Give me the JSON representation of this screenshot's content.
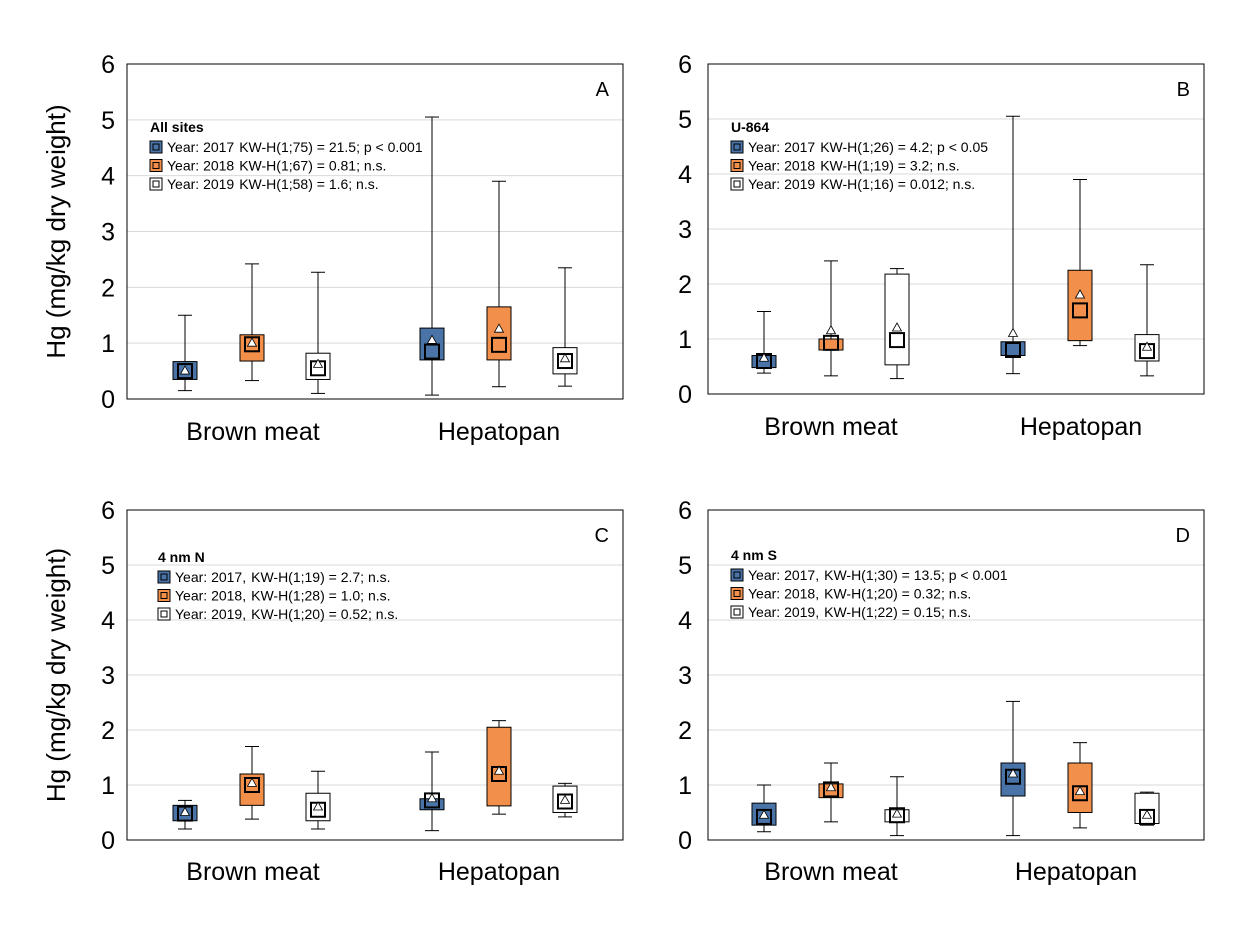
{
  "y_axis_label": "Hg (mg/kg dry weight)",
  "colors": {
    "2017": "#4a74a8",
    "2018": "#f28f4a",
    "2019": "#ffffff",
    "grid": "#d9d9d9",
    "frame": "#000000"
  },
  "chart_data": [
    {
      "type": "box",
      "panel": "A",
      "site": "All sites",
      "ylim": [
        0,
        6
      ],
      "yticks": [
        "0",
        "1",
        "2",
        "3",
        "4",
        "5",
        "6"
      ],
      "categories": [
        "Brown meat",
        "Hepatopan"
      ],
      "legend": [
        {
          "year": "Year: 2017",
          "stat": "KW-H(1;75) = 21.5; p < 0.001"
        },
        {
          "year": "Year: 2018",
          "stat": "KW-H(1;67) = 0.81; n.s."
        },
        {
          "year": "Year: 2019",
          "stat": "KW-H(1;58) = 1.6; n.s."
        }
      ],
      "series": [
        {
          "year": "2017",
          "boxes": [
            {
              "min": 0.15,
              "q1": 0.35,
              "median": 0.5,
              "q3": 0.67,
              "max": 1.5,
              "mean": 0.5
            },
            {
              "min": 0.07,
              "q1": 0.7,
              "median": 0.85,
              "q3": 1.27,
              "max": 5.05,
              "mean": 1.05
            }
          ]
        },
        {
          "year": "2018",
          "boxes": [
            {
              "min": 0.33,
              "q1": 0.68,
              "median": 0.98,
              "q3": 1.15,
              "max": 2.42,
              "mean": 1.0
            },
            {
              "min": 0.22,
              "q1": 0.7,
              "median": 0.97,
              "q3": 1.65,
              "max": 3.9,
              "mean": 1.25
            }
          ]
        },
        {
          "year": "2019",
          "boxes": [
            {
              "min": 0.1,
              "q1": 0.35,
              "median": 0.55,
              "q3": 0.82,
              "max": 2.27,
              "mean": 0.62
            },
            {
              "min": 0.23,
              "q1": 0.45,
              "median": 0.68,
              "q3": 0.92,
              "max": 2.35,
              "mean": 0.72
            }
          ]
        }
      ]
    },
    {
      "type": "box",
      "panel": "B",
      "site": "U-864",
      "ylim": [
        0,
        6
      ],
      "yticks": [
        "0",
        "1",
        "2",
        "3",
        "4",
        "5",
        "6"
      ],
      "categories": [
        "Brown meat",
        "Hepatopan"
      ],
      "legend": [
        {
          "year": "Year: 2017",
          "stat": "KW-H(1;26) = 4.2; p < 0.05"
        },
        {
          "year": "Year: 2018",
          "stat": "KW-H(1;19) = 3.2; n.s."
        },
        {
          "year": "Year: 2019",
          "stat": "KW-H(1;16) = 0.012; n.s."
        }
      ],
      "series": [
        {
          "year": "2017",
          "boxes": [
            {
              "min": 0.38,
              "q1": 0.48,
              "median": 0.6,
              "q3": 0.7,
              "max": 1.5,
              "mean": 0.65
            },
            {
              "min": 0.37,
              "q1": 0.7,
              "median": 0.8,
              "q3": 0.95,
              "max": 5.05,
              "mean": 1.1
            }
          ]
        },
        {
          "year": "2018",
          "boxes": [
            {
              "min": 0.33,
              "q1": 0.8,
              "median": 0.93,
              "q3": 1.0,
              "max": 2.42,
              "mean": 1.15
            },
            {
              "min": 0.88,
              "q1": 0.97,
              "median": 1.52,
              "q3": 2.25,
              "max": 3.9,
              "mean": 1.8
            }
          ]
        },
        {
          "year": "2019",
          "boxes": [
            {
              "min": 0.28,
              "q1": 0.53,
              "median": 0.98,
              "q3": 2.18,
              "max": 2.28,
              "mean": 1.2
            },
            {
              "min": 0.33,
              "q1": 0.6,
              "median": 0.78,
              "q3": 1.08,
              "max": 2.35,
              "mean": 0.85
            }
          ]
        }
      ]
    },
    {
      "type": "box",
      "panel": "C",
      "site": "4 nm N",
      "ylim": [
        0,
        6
      ],
      "yticks": [
        "0",
        "1",
        "2",
        "3",
        "4",
        "5",
        "6"
      ],
      "categories": [
        "Brown meat",
        "Hepatopan"
      ],
      "legend": [
        {
          "year": "Year: 2017,",
          "stat": "KW-H(1;19) = 2.7; n.s."
        },
        {
          "year": "Year: 2018,",
          "stat": "KW-H(1;28) = 1.0; n.s."
        },
        {
          "year": "Year: 2019,",
          "stat": "KW-H(1;20) = 0.52; n.s."
        }
      ],
      "series": [
        {
          "year": "2017",
          "boxes": [
            {
              "min": 0.2,
              "q1": 0.35,
              "median": 0.48,
              "q3": 0.63,
              "max": 0.72,
              "mean": 0.5
            },
            {
              "min": 0.17,
              "q1": 0.55,
              "median": 0.72,
              "q3": 0.75,
              "max": 1.6,
              "mean": 0.75
            }
          ]
        },
        {
          "year": "2018",
          "boxes": [
            {
              "min": 0.38,
              "q1": 0.63,
              "median": 1.0,
              "q3": 1.2,
              "max": 1.7,
              "mean": 1.03
            },
            {
              "min": 0.47,
              "q1": 0.62,
              "median": 1.2,
              "q3": 2.05,
              "max": 2.17,
              "mean": 1.25
            }
          ]
        },
        {
          "year": "2019",
          "boxes": [
            {
              "min": 0.2,
              "q1": 0.35,
              "median": 0.55,
              "q3": 0.85,
              "max": 1.25,
              "mean": 0.6
            },
            {
              "min": 0.42,
              "q1": 0.5,
              "median": 0.7,
              "q3": 0.98,
              "max": 1.03,
              "mean": 0.72
            }
          ]
        }
      ]
    },
    {
      "type": "box",
      "panel": "D",
      "site": "4 nm S",
      "ylim": [
        0,
        6
      ],
      "yticks": [
        "0",
        "1",
        "2",
        "3",
        "4",
        "5",
        "6"
      ],
      "categories": [
        "Brown meat",
        "Hepatopan"
      ],
      "legend": [
        {
          "year": "Year: 2017,",
          "stat": "KW-H(1;30) = 13.5; p < 0.001"
        },
        {
          "year": "Year: 2018,",
          "stat": "KW-H(1;20) = 0.32; n.s."
        },
        {
          "year": "Year: 2019,",
          "stat": "KW-H(1;22) = 0.15; n.s."
        }
      ],
      "series": [
        {
          "year": "2017",
          "boxes": [
            {
              "min": 0.15,
              "q1": 0.27,
              "median": 0.42,
              "q3": 0.67,
              "max": 1.0,
              "mean": 0.45
            },
            {
              "min": 0.08,
              "q1": 0.8,
              "median": 1.15,
              "q3": 1.4,
              "max": 2.52,
              "mean": 1.2
            }
          ]
        },
        {
          "year": "2018",
          "boxes": [
            {
              "min": 0.33,
              "q1": 0.77,
              "median": 0.92,
              "q3": 1.02,
              "max": 1.4,
              "mean": 0.95
            },
            {
              "min": 0.22,
              "q1": 0.5,
              "median": 0.85,
              "q3": 1.4,
              "max": 1.77,
              "mean": 0.88
            }
          ]
        },
        {
          "year": "2019",
          "boxes": [
            {
              "min": 0.08,
              "q1": 0.33,
              "median": 0.45,
              "q3": 0.55,
              "max": 1.15,
              "mean": 0.47
            },
            {
              "min": 0.27,
              "q1": 0.3,
              "median": 0.42,
              "q3": 0.85,
              "max": 0.87,
              "mean": 0.45
            }
          ]
        }
      ]
    }
  ]
}
